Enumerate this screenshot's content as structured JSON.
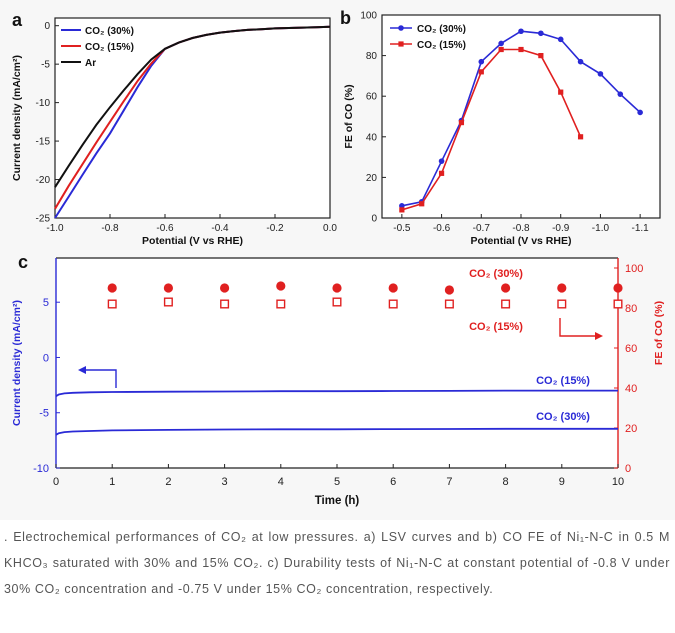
{
  "panels": {
    "a": {
      "letter": "a"
    },
    "b": {
      "letter": "b"
    },
    "c": {
      "letter": "c"
    }
  },
  "chart_data": [
    {
      "id": "a",
      "type": "line",
      "xlabel": "Potential (V vs RHE)",
      "ylabel": "Current density (mA/cm²)",
      "xlim": [
        -1.0,
        0.0
      ],
      "ylim": [
        -25,
        1
      ],
      "xticks": [
        "-1.0",
        "-0.8",
        "-0.6",
        "-0.4",
        "-0.2",
        "0.0"
      ],
      "yticks": [
        "0",
        "-5",
        "-10",
        "-15",
        "-20",
        "-25"
      ],
      "legend_position": "top-left",
      "series": [
        {
          "name": "CO₂ (30%)",
          "color": "#2a2ad6",
          "x": [
            -1.0,
            -0.95,
            -0.9,
            -0.85,
            -0.8,
            -0.75,
            -0.7,
            -0.65,
            -0.6,
            -0.55,
            -0.5,
            -0.45,
            -0.4,
            -0.35,
            -0.3,
            -0.25,
            -0.2,
            -0.15,
            -0.1,
            -0.05,
            0.0
          ],
          "y": [
            -25.0,
            -22.2,
            -19.4,
            -16.6,
            -14.0,
            -11.0,
            -8.0,
            -5.2,
            -3.0,
            -2.2,
            -1.6,
            -1.2,
            -0.9,
            -0.7,
            -0.55,
            -0.45,
            -0.35,
            -0.3,
            -0.25,
            -0.2,
            -0.15
          ]
        },
        {
          "name": "CO₂ (15%)",
          "color": "#e02020",
          "x": [
            -1.0,
            -0.95,
            -0.9,
            -0.85,
            -0.8,
            -0.75,
            -0.7,
            -0.65,
            -0.6,
            -0.55,
            -0.5,
            -0.45,
            -0.4,
            -0.35,
            -0.3,
            -0.25,
            -0.2,
            -0.15,
            -0.1,
            -0.05,
            0.0
          ],
          "y": [
            -23.8,
            -20.8,
            -18.0,
            -15.2,
            -12.5,
            -9.8,
            -7.2,
            -4.9,
            -3.0,
            -2.2,
            -1.6,
            -1.2,
            -0.9,
            -0.7,
            -0.55,
            -0.45,
            -0.35,
            -0.3,
            -0.25,
            -0.2,
            -0.15
          ]
        },
        {
          "name": "Ar",
          "color": "#111111",
          "x": [
            -1.0,
            -0.95,
            -0.9,
            -0.85,
            -0.8,
            -0.75,
            -0.7,
            -0.65,
            -0.6,
            -0.55,
            -0.5,
            -0.45,
            -0.4,
            -0.35,
            -0.3,
            -0.25,
            -0.2,
            -0.15,
            -0.1,
            -0.05,
            0.0
          ],
          "y": [
            -21.0,
            -18.2,
            -15.5,
            -12.9,
            -10.6,
            -8.4,
            -6.3,
            -4.4,
            -3.0,
            -2.2,
            -1.6,
            -1.2,
            -0.9,
            -0.7,
            -0.55,
            -0.45,
            -0.35,
            -0.3,
            -0.25,
            -0.2,
            -0.15
          ]
        }
      ]
    },
    {
      "id": "b",
      "type": "line",
      "xlabel": "Potential (V vs RHE)",
      "ylabel": "FE of CO (%)",
      "xlim": [
        -0.45,
        -1.15
      ],
      "ylim": [
        0,
        100
      ],
      "xticks": [
        "-0.5",
        "-0.6",
        "-0.7",
        "-0.8",
        "-0.9",
        "-1.0",
        "-1.1"
      ],
      "yticks": [
        "0",
        "20",
        "40",
        "60",
        "80",
        "100"
      ],
      "legend_position": "top-left",
      "series": [
        {
          "name": "CO₂ (30%)",
          "color": "#2a2ad6",
          "marker": "circle",
          "x": [
            -0.5,
            -0.55,
            -0.6,
            -0.65,
            -0.7,
            -0.75,
            -0.8,
            -0.85,
            -0.9,
            -0.95,
            -1.0,
            -1.05,
            -1.1
          ],
          "y": [
            6,
            8,
            28,
            48,
            77,
            86,
            92,
            91,
            88,
            77,
            71,
            61,
            52
          ]
        },
        {
          "name": "CO₂ (15%)",
          "color": "#e02020",
          "marker": "square",
          "x": [
            -0.5,
            -0.55,
            -0.6,
            -0.65,
            -0.7,
            -0.75,
            -0.8,
            -0.85,
            -0.9,
            -0.95
          ],
          "y": [
            4,
            7,
            22,
            47,
            72,
            83,
            83,
            80,
            62,
            40
          ]
        }
      ]
    },
    {
      "id": "c",
      "type": "line",
      "xlabel": "Time (h)",
      "ylabel": "Current density (mA/cm²)",
      "y2label": "FE of CO (%)",
      "xlim": [
        0,
        10
      ],
      "ylim": [
        -10,
        9
      ],
      "y2lim": [
        0,
        105
      ],
      "xticks": [
        "0",
        "1",
        "2",
        "3",
        "4",
        "5",
        "6",
        "7",
        "8",
        "9",
        "10"
      ],
      "yticks": [
        "-10",
        "-5",
        "0",
        "5"
      ],
      "y2ticks": [
        "0",
        "20",
        "40",
        "60",
        "80",
        "100"
      ],
      "series": [
        {
          "name": "CO₂ (15%)",
          "axis": "left",
          "color": "#2a2ad6",
          "x": [
            0,
            0.05,
            0.15,
            0.3,
            0.6,
            1,
            2,
            3,
            4,
            5,
            6,
            7,
            8,
            9,
            10
          ],
          "y": [
            -3.5,
            -3.35,
            -3.25,
            -3.2,
            -3.15,
            -3.12,
            -3.1,
            -3.08,
            -3.05,
            -3.05,
            -3.03,
            -3.02,
            -3.0,
            -3.0,
            -3.0
          ]
        },
        {
          "name": "CO₂ (30%)",
          "axis": "left",
          "color": "#2a2ad6",
          "x": [
            0,
            0.05,
            0.15,
            0.3,
            0.6,
            1,
            2,
            3,
            4,
            5,
            6,
            7,
            8,
            9,
            10
          ],
          "y": [
            -7.0,
            -6.85,
            -6.75,
            -6.7,
            -6.65,
            -6.6,
            -6.55,
            -6.52,
            -6.5,
            -6.5,
            -6.48,
            -6.47,
            -6.45,
            -6.45,
            -6.45
          ]
        },
        {
          "name": "CO₂ (30%)",
          "axis": "right",
          "color": "#e02020",
          "marker": "filled-circle",
          "x": [
            1,
            2,
            3,
            4,
            5,
            6,
            7,
            8,
            9,
            10
          ],
          "y": [
            90,
            90,
            90,
            91,
            90,
            90,
            89,
            90,
            90,
            90
          ]
        },
        {
          "name": "CO₂ (15%)",
          "axis": "right",
          "color": "#e02020",
          "marker": "open-square",
          "x": [
            1,
            2,
            3,
            4,
            5,
            6,
            7,
            8,
            9,
            10
          ],
          "y": [
            82,
            83,
            82,
            82,
            83,
            82,
            82,
            82,
            82,
            82
          ]
        }
      ],
      "annotations": {
        "arrow_left_text": "",
        "label_30_red": "CO₂ (30%)",
        "label_15_red": "CO₂ (15%)",
        "label_15_blue": "CO₂ (15%)",
        "label_30_blue": "CO₂ (30%)"
      }
    }
  ],
  "caption": {
    "text": ". Electrochemical performances of CO₂ at low pressures. a) LSV curves and b) CO FE of Ni₁-N-C in 0.5 M KHCO₃ saturated with 30% and 15% CO₂. c) Durability tests of Ni₁-N-C at constant potential of -0.8 V under 30% CO₂ concentration and -0.75 V under 15% CO₂ concentration, respectively."
  }
}
